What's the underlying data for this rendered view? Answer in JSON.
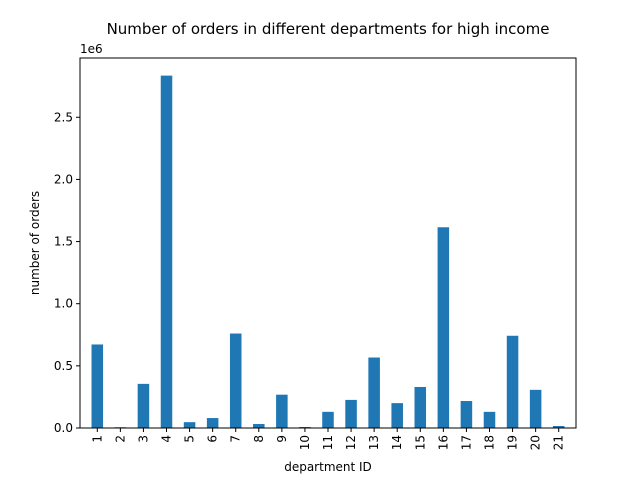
{
  "chart_data": {
    "type": "bar",
    "title": "Number of orders in different departments for high income",
    "xlabel": "department ID",
    "ylabel": "number of orders",
    "offset_label": "1e6",
    "categories": [
      "1",
      "2",
      "3",
      "4",
      "5",
      "6",
      "7",
      "8",
      "9",
      "10",
      "11",
      "12",
      "13",
      "14",
      "15",
      "16",
      "17",
      "18",
      "19",
      "20",
      "21"
    ],
    "values": [
      672000,
      6000,
      355000,
      2835000,
      47000,
      80000,
      760000,
      32000,
      268000,
      8000,
      130000,
      226000,
      567000,
      200000,
      330000,
      1615000,
      217000,
      130000,
      742000,
      307000,
      16000
    ],
    "yticks": [
      0.0,
      0.5,
      1.0,
      1.5,
      2.0,
      2.5
    ],
    "ylim": [
      0,
      2976750
    ],
    "grid": false,
    "bar_color": "#1f77b4"
  }
}
